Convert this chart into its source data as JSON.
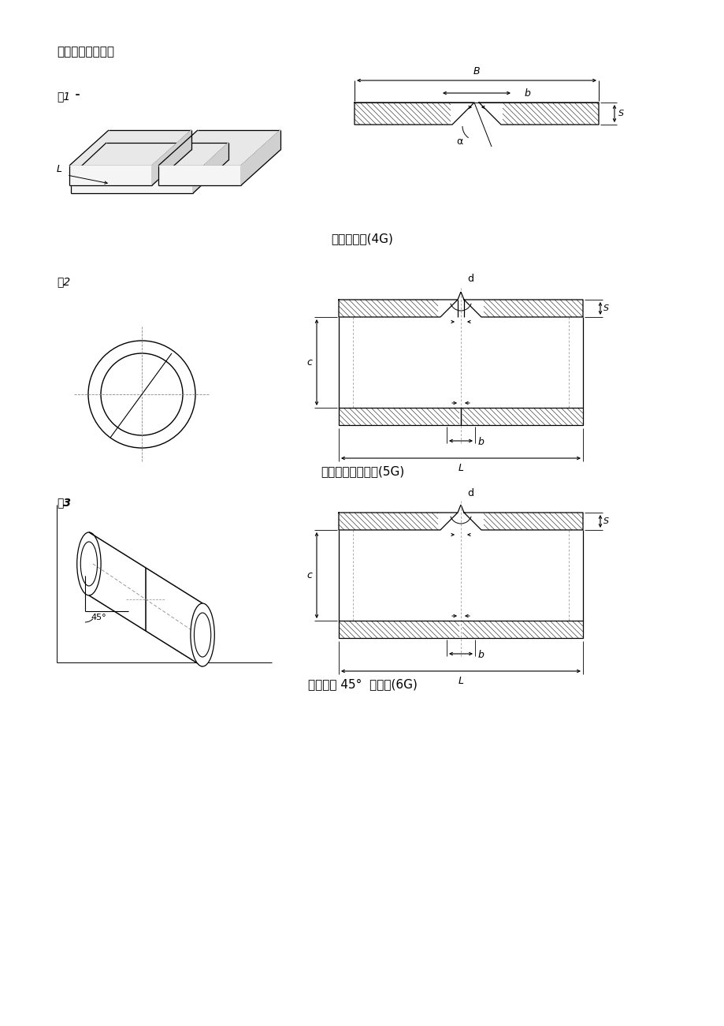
{
  "title": "实际操作项目附图",
  "fig1_label": "图1",
  "fig2_label": "图2",
  "fig3_label": "图3",
  "caption1": "板对接仰焊(4G)",
  "caption2": "管对接水平固定焊(5G)",
  "caption3": "管对接斜 45°  固定焊(6G)",
  "bg_color": "#ffffff",
  "line_color": "#000000",
  "text_color": "#000000",
  "font_size_title": 11,
  "font_size_label": 10,
  "font_size_caption": 11
}
